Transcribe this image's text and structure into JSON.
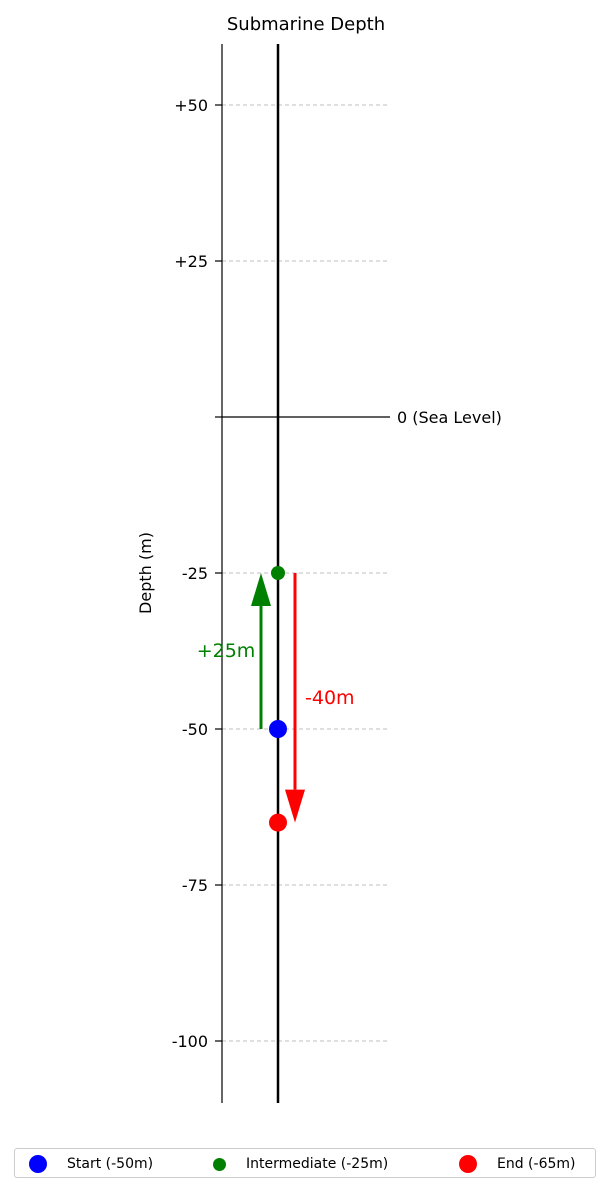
{
  "chart_data": {
    "type": "scatter",
    "title": "Submarine Depth",
    "ylabel": "Depth (m)",
    "ylim": [
      -110,
      60
    ],
    "yticks": [
      {
        "value": 50,
        "label": "+50"
      },
      {
        "value": 25,
        "label": "+25"
      },
      {
        "value": 0,
        "label": ""
      },
      {
        "value": -25,
        "label": "-25"
      },
      {
        "value": -50,
        "label": "-50"
      },
      {
        "value": -75,
        "label": "-75"
      },
      {
        "value": -100,
        "label": "-100"
      }
    ],
    "grid": {
      "horizontal": true,
      "style": "dashed",
      "color": "#cccccc",
      "values": [
        50,
        25,
        -25,
        -50,
        -75,
        -100
      ]
    },
    "sea_level": {
      "value": 0,
      "label": "0 (Sea Level)"
    },
    "points": [
      {
        "name": "Start (-50m)",
        "y": -50,
        "color": "#0000ff"
      },
      {
        "name": "Intermediate (-25m)",
        "y": -25,
        "color": "#008000"
      },
      {
        "name": "End (-65m)",
        "y": -65,
        "color": "#ff0000"
      }
    ],
    "arrows": [
      {
        "from": -50,
        "to": -25,
        "label": "+25m",
        "color": "#008000"
      },
      {
        "from": -25,
        "to": -65,
        "label": "-40m",
        "color": "#ff0000"
      }
    ],
    "legend_placement": "bottom"
  }
}
